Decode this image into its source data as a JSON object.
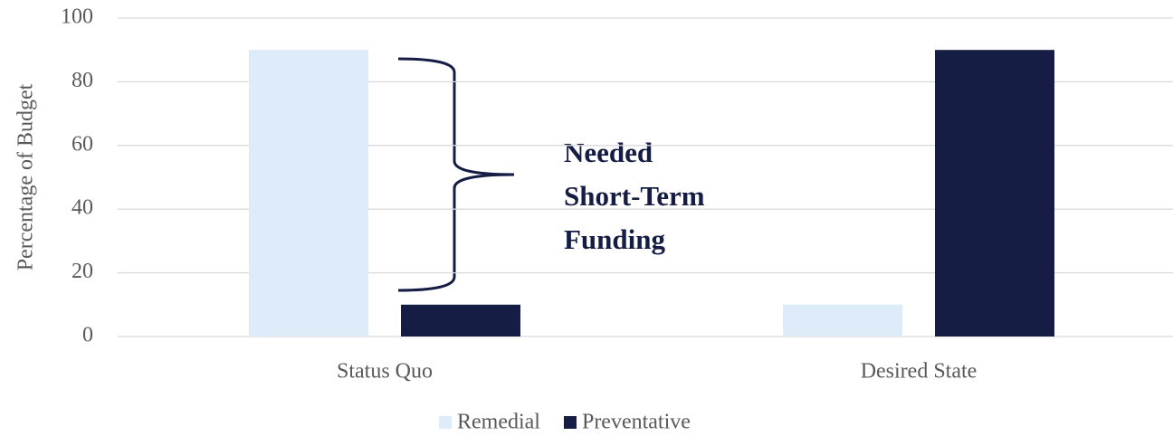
{
  "chart_data": {
    "type": "bar",
    "categories": [
      "Status Quo",
      "Desired State"
    ],
    "series": [
      {
        "name": "Remedial",
        "color": "#deebf9",
        "values": [
          90,
          10
        ]
      },
      {
        "name": "Preventative",
        "color": "#151d45",
        "values": [
          10,
          90
        ]
      }
    ],
    "y_label": "Percentage of Budget",
    "annotation": [
      "Needed",
      "Short-Term",
      "Funding"
    ],
    "ylim": [
      0,
      100
    ],
    "yticks": [
      0,
      20,
      40,
      60,
      80,
      100
    ],
    "grid": true,
    "legend": "bottom"
  }
}
